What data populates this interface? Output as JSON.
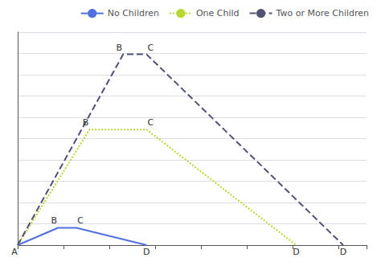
{
  "chart_data": {
    "type": "line",
    "series": [
      {
        "name": "No Children",
        "line_style": "solid",
        "x": [
          0,
          4400,
          6390,
          14040
        ],
        "values": [
          0,
          390,
          390,
          0
        ],
        "annotations": [
          {
            "text": "A",
            "x": 0,
            "y": 0
          },
          {
            "text": "B",
            "x": 4400,
            "y": 390
          },
          {
            "text": "C",
            "x": 6390,
            "y": 390
          },
          {
            "text": "D",
            "x": 14040,
            "y": 0
          }
        ]
      },
      {
        "name": "One Child",
        "line_style": "dotted",
        "x": [
          0,
          7830,
          14040,
          30338
        ],
        "values": [
          0,
          2604,
          2604,
          0
        ],
        "annotations": [
          {
            "text": "B",
            "x": 7830,
            "y": 2604
          },
          {
            "text": "C",
            "x": 14040,
            "y": 2604
          },
          {
            "text": "D",
            "x": 30338,
            "y": 0
          }
        ]
      },
      {
        "name": "Two or More Children",
        "line_style": "dashed",
        "x": [
          0,
          11490,
          14040,
          35458
        ],
        "values": [
          0,
          4300,
          4300,
          0
        ],
        "annotations": [
          {
            "text": "B",
            "x": 11490,
            "y": 4300
          },
          {
            "text": "C",
            "x": 14040,
            "y": 4300
          },
          {
            "text": "D",
            "x": 35458,
            "y": 0
          }
        ]
      }
    ],
    "xlim": [
      0,
      38000
    ],
    "xticks": [
      0,
      5000,
      10000,
      15000,
      20000,
      25000,
      30000,
      35000
    ],
    "ylim": [
      0,
      4800
    ],
    "yticks": [
      0,
      480,
      960,
      1440,
      1920,
      2400,
      2880,
      3360,
      3840,
      4320,
      4800
    ],
    "grid": true,
    "legend": "upper right",
    "tick_labels": false
  }
}
